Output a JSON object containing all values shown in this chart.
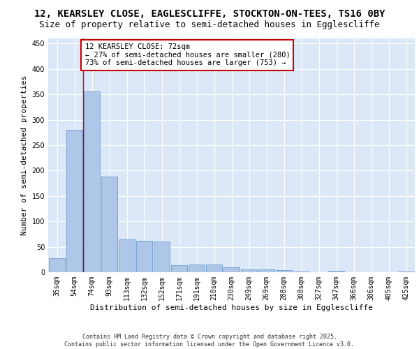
{
  "title_line1": "12, KEARSLEY CLOSE, EAGLESCLIFFE, STOCKTON-ON-TEES, TS16 0BY",
  "title_line2": "Size of property relative to semi-detached houses in Egglescliffe",
  "xlabel": "Distribution of semi-detached houses by size in Egglescliffe",
  "ylabel": "Number of semi-detached properties",
  "categories": [
    "35sqm",
    "54sqm",
    "74sqm",
    "93sqm",
    "113sqm",
    "132sqm",
    "152sqm",
    "171sqm",
    "191sqm",
    "210sqm",
    "230sqm",
    "249sqm",
    "269sqm",
    "288sqm",
    "308sqm",
    "327sqm",
    "347sqm",
    "366sqm",
    "386sqm",
    "405sqm",
    "425sqm"
  ],
  "values": [
    28,
    280,
    355,
    188,
    65,
    62,
    60,
    14,
    15,
    15,
    10,
    6,
    5,
    4,
    1,
    0,
    3,
    0,
    0,
    0,
    2
  ],
  "bar_color": "#aec6e8",
  "bar_edge_color": "#5a8fc4",
  "property_line_x": 1.5,
  "property_line_color": "#cc0000",
  "annotation_text": "12 KEARSLEY CLOSE: 72sqm\n← 27% of semi-detached houses are smaller (280)\n73% of semi-detached houses are larger (753) →",
  "annotation_box_color": "#ffffff",
  "annotation_box_edge_color": "#cc0000",
  "ylim": [
    0,
    460
  ],
  "yticks": [
    0,
    50,
    100,
    150,
    200,
    250,
    300,
    350,
    400,
    450
  ],
  "background_color": "#dce8f8",
  "grid_color": "#ffffff",
  "footer_text": "Contains HM Land Registry data © Crown copyright and database right 2025.\nContains public sector information licensed under the Open Government Licence v3.0.",
  "title_fontsize": 10,
  "subtitle_fontsize": 9,
  "axis_label_fontsize": 8,
  "tick_fontsize": 7,
  "annotation_fontsize": 7.5,
  "footer_fontsize": 6
}
